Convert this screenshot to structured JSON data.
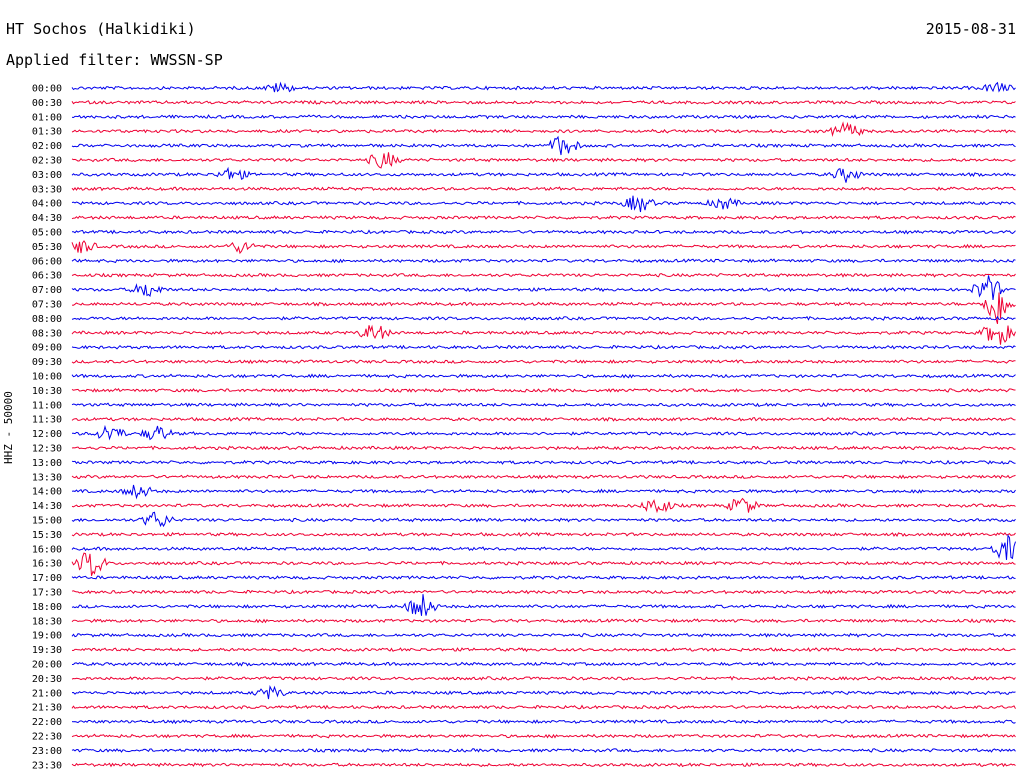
{
  "header": {
    "station": "HT Sochos (Halkidiki)",
    "date": "2015-08-31",
    "filter": "Applied filter: WWSSN-SP"
  },
  "chart_data": {
    "type": "line",
    "title": "HT Sochos (Halkidiki)",
    "ylabel": "HHZ - 50000",
    "rows": [
      "00:00",
      "00:30",
      "01:00",
      "01:30",
      "02:00",
      "02:30",
      "03:00",
      "03:30",
      "04:00",
      "04:30",
      "05:00",
      "05:30",
      "06:00",
      "06:30",
      "07:00",
      "07:30",
      "08:00",
      "08:30",
      "09:00",
      "09:30",
      "10:00",
      "10:30",
      "11:00",
      "11:30",
      "12:00",
      "12:30",
      "13:00",
      "13:30",
      "14:00",
      "14:30",
      "15:00",
      "15:30",
      "16:00",
      "16:30",
      "17:00",
      "17:30",
      "18:00",
      "18:30",
      "19:00",
      "19:30",
      "20:00",
      "20:30",
      "21:00",
      "21:30",
      "22:00",
      "22:30",
      "23:00",
      "23:30"
    ],
    "colors": [
      "#0000ee",
      "#ee0033"
    ],
    "events": [
      {
        "row": 0,
        "pos": 0.22,
        "amp": 5
      },
      {
        "row": 0,
        "pos": 0.98,
        "amp": 5
      },
      {
        "row": 3,
        "pos": 0.82,
        "amp": 9
      },
      {
        "row": 4,
        "pos": 0.52,
        "amp": 11
      },
      {
        "row": 5,
        "pos": 0.33,
        "amp": 9
      },
      {
        "row": 6,
        "pos": 0.17,
        "amp": 7
      },
      {
        "row": 6,
        "pos": 0.82,
        "amp": 7
      },
      {
        "row": 8,
        "pos": 0.6,
        "amp": 9
      },
      {
        "row": 8,
        "pos": 0.69,
        "amp": 6
      },
      {
        "row": 11,
        "pos": 0.01,
        "amp": 7
      },
      {
        "row": 11,
        "pos": 0.18,
        "amp": 6
      },
      {
        "row": 14,
        "pos": 0.08,
        "amp": 8
      },
      {
        "row": 14,
        "pos": 0.97,
        "amp": 14
      },
      {
        "row": 15,
        "pos": 0.98,
        "amp": 22
      },
      {
        "row": 17,
        "pos": 0.32,
        "amp": 9
      },
      {
        "row": 17,
        "pos": 0.98,
        "amp": 14
      },
      {
        "row": 24,
        "pos": 0.04,
        "amp": 9
      },
      {
        "row": 24,
        "pos": 0.09,
        "amp": 8
      },
      {
        "row": 28,
        "pos": 0.07,
        "amp": 7
      },
      {
        "row": 29,
        "pos": 0.62,
        "amp": 9
      },
      {
        "row": 29,
        "pos": 0.71,
        "amp": 9
      },
      {
        "row": 30,
        "pos": 0.09,
        "amp": 9
      },
      {
        "row": 32,
        "pos": 0.99,
        "amp": 13
      },
      {
        "row": 33,
        "pos": 0.02,
        "amp": 14
      },
      {
        "row": 36,
        "pos": 0.37,
        "amp": 13
      },
      {
        "row": 42,
        "pos": 0.21,
        "amp": 6
      }
    ]
  }
}
